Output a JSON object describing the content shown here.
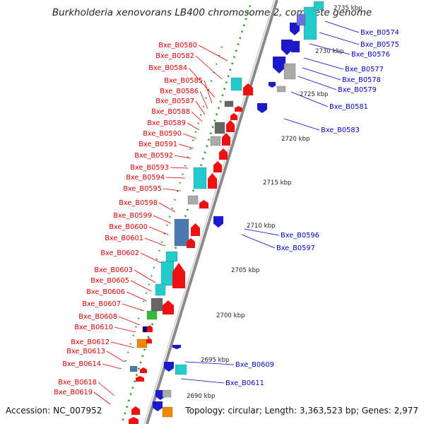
{
  "title": "Burkholderia xenovorans LB400 chromosome 2, complete genome",
  "footer": {
    "accession": "Accession: NC_007952",
    "summary": "Topology: circular; Length: 3,363,523 bp; Genes: 2,977"
  },
  "colors": {
    "reverse_label": "#dd0000",
    "forward_label": "#0000cc",
    "backbone": "#888888",
    "tick": "#229922",
    "red": "#ee1111",
    "blue": "#1a1acc",
    "cyan": "#22cccc",
    "gray": "#aaaaaa",
    "darkgray": "#666666",
    "steel": "#4a7bb0",
    "green": "#33bb33",
    "orange": "#ee8800",
    "navy": "#000080"
  },
  "scale_labels": [
    "2735 kbp",
    "2730 kbp",
    "2725 kbp",
    "2720 kbp",
    "2715 kbp",
    "2710 kbp",
    "2705 kbp",
    "2700 kbp",
    "2695 kbp",
    "2690 kbp"
  ],
  "left_labels": [
    "Bxe_B0580",
    "Bxe_B0582",
    "Bxe_B0584",
    "Bxe_B0585",
    "Bxe_B0586",
    "Bxe_B0587",
    "Bxe_B0588",
    "Bxe_B0589",
    "Bxe_B0590",
    "Bxe_B0591",
    "Bxe_B0592",
    "Bxe_B0593",
    "Bxe_B0594",
    "Bxe_B0595",
    "Bxe_B0598",
    "Bxe_B0599",
    "Bxe_B0600",
    "Bxe_B0601",
    "Bxe_B0602",
    "Bxe_B0603",
    "Bxe_B0605",
    "Bxe_B0606",
    "Bxe_B0607",
    "Bxe_B0608",
    "Bxe_B0610",
    "Bxe_B0612",
    "Bxe_B0613",
    "Bxe_B0614",
    "Bxe_B0618",
    "Bxe_B0619"
  ],
  "right_labels": [
    "Bxe_B0574",
    "Bxe_B0575",
    "Bxe_B0576",
    "Bxe_B0577",
    "Bxe_B0578",
    "Bxe_B0579",
    "Bxe_B0581",
    "Bxe_B0583",
    "Bxe_B0596",
    "Bxe_B0597",
    "Bxe_B0609",
    "Bxe_B0611"
  ]
}
